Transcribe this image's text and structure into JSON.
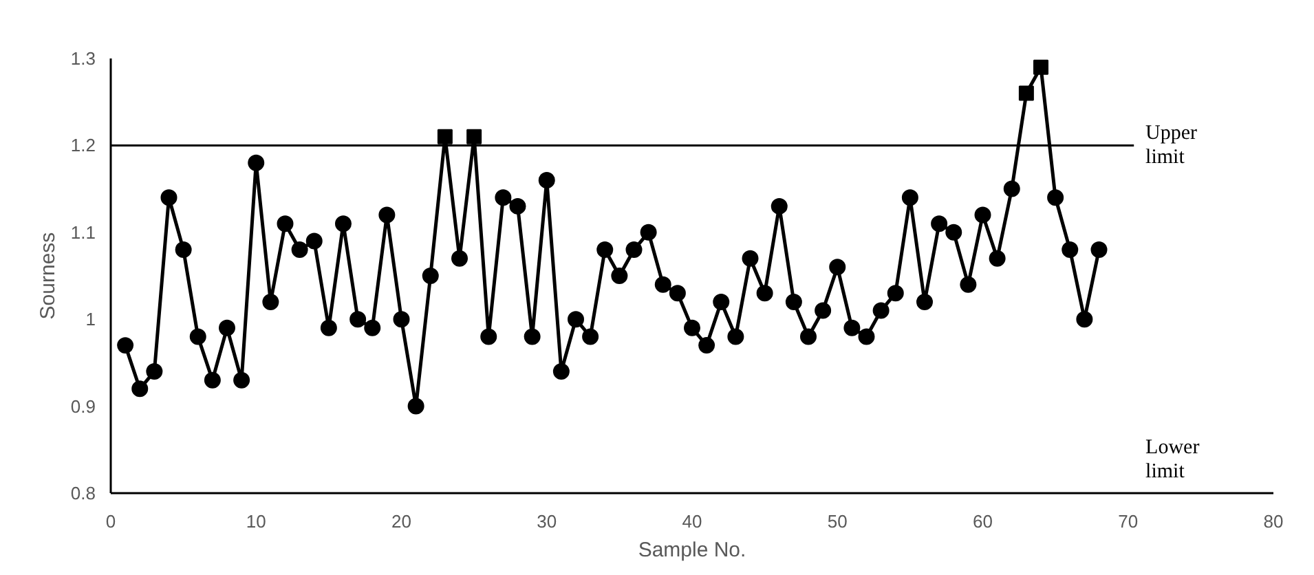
{
  "chart_data": {
    "type": "line",
    "xlabel": "Sample No.",
    "ylabel": "Sourness",
    "xlim": [
      0,
      80
    ],
    "xticks": [
      0,
      10,
      20,
      30,
      40,
      50,
      60,
      70,
      80
    ],
    "ylim": [
      0.8,
      1.3
    ],
    "yticks": [
      {
        "value": 0.8,
        "label": "0.8"
      },
      {
        "value": 0.9,
        "label": "0.9"
      },
      {
        "value": 1.0,
        "label": "1"
      },
      {
        "value": 1.1,
        "label": "1.1"
      },
      {
        "value": 1.2,
        "label": "1.2"
      },
      {
        "value": 1.3,
        "label": "1.3"
      }
    ],
    "grid": false,
    "series": [
      {
        "marker": "none",
        "color": "#000000",
        "x": [
          1,
          2,
          3,
          4,
          5,
          6,
          7,
          8,
          9,
          10,
          11,
          12,
          13,
          14,
          15,
          16,
          17,
          18,
          19,
          20,
          21,
          22,
          23,
          24,
          25,
          26,
          27,
          28,
          29,
          30,
          31,
          32,
          33,
          34,
          35,
          36,
          37,
          38,
          39,
          40,
          41,
          42,
          43,
          44,
          45,
          46,
          47,
          48,
          49,
          50,
          51,
          52,
          53,
          54,
          55,
          56,
          57,
          58,
          59,
          60,
          61,
          62,
          63,
          64,
          65,
          66,
          67,
          68
        ],
        "values": [
          0.97,
          0.92,
          0.94,
          1.14,
          1.08,
          0.98,
          0.93,
          0.99,
          0.93,
          1.18,
          1.02,
          1.11,
          1.08,
          1.09,
          0.99,
          1.11,
          1.0,
          0.99,
          1.12,
          1.0,
          0.9,
          1.05,
          1.21,
          1.07,
          1.21,
          0.98,
          1.14,
          1.13,
          0.98,
          1.16,
          0.94,
          1.0,
          0.98,
          1.08,
          1.05,
          1.08,
          1.1,
          1.04,
          1.03,
          0.99,
          0.97,
          1.02,
          0.98,
          1.07,
          1.03,
          1.13,
          1.02,
          0.98,
          1.01,
          1.06,
          0.99,
          0.98,
          1.01,
          1.03,
          1.14,
          1.02,
          1.11,
          1.1,
          1.04,
          1.12,
          1.07,
          1.15,
          1.26,
          1.29,
          1.14,
          1.08,
          1.0,
          1.08
        ]
      },
      {
        "type": "scatter",
        "marker": "circle",
        "color": "#000000",
        "x": [
          1,
          2,
          3,
          4,
          5,
          6,
          7,
          8,
          9,
          10,
          11,
          12,
          13,
          14,
          15,
          16,
          17,
          18,
          19,
          20,
          21,
          22,
          24,
          26,
          27,
          28,
          29,
          30,
          31,
          32,
          33,
          34,
          35,
          36,
          37,
          38,
          39,
          40,
          41,
          42,
          43,
          44,
          45,
          46,
          47,
          48,
          49,
          50,
          51,
          52,
          53,
          54,
          55,
          56,
          57,
          58,
          59,
          60,
          61,
          62,
          65,
          66,
          67,
          68
        ],
        "values": [
          0.97,
          0.92,
          0.94,
          1.14,
          1.08,
          0.98,
          0.93,
          0.99,
          0.93,
          1.18,
          1.02,
          1.11,
          1.08,
          1.09,
          0.99,
          1.11,
          1.0,
          0.99,
          1.12,
          1.0,
          0.9,
          1.05,
          1.07,
          0.98,
          1.14,
          1.13,
          0.98,
          1.16,
          0.94,
          1.0,
          0.98,
          1.08,
          1.05,
          1.08,
          1.1,
          1.04,
          1.03,
          0.99,
          0.97,
          1.02,
          0.98,
          1.07,
          1.03,
          1.13,
          1.02,
          0.98,
          1.01,
          1.06,
          0.99,
          0.98,
          1.01,
          1.03,
          1.14,
          1.02,
          1.11,
          1.1,
          1.04,
          1.12,
          1.07,
          1.15,
          1.14,
          1.08,
          1.0,
          1.08
        ]
      },
      {
        "type": "scatter",
        "marker": "square",
        "color": "#000000",
        "x": [
          23,
          25,
          63,
          64
        ],
        "values": [
          1.21,
          1.21,
          1.26,
          1.29
        ]
      }
    ],
    "ref_lines": [
      {
        "axis": "y",
        "value": 1.2,
        "label": "Upper limit",
        "color": "#000000"
      }
    ],
    "annotations": [
      "Lower limit"
    ]
  }
}
